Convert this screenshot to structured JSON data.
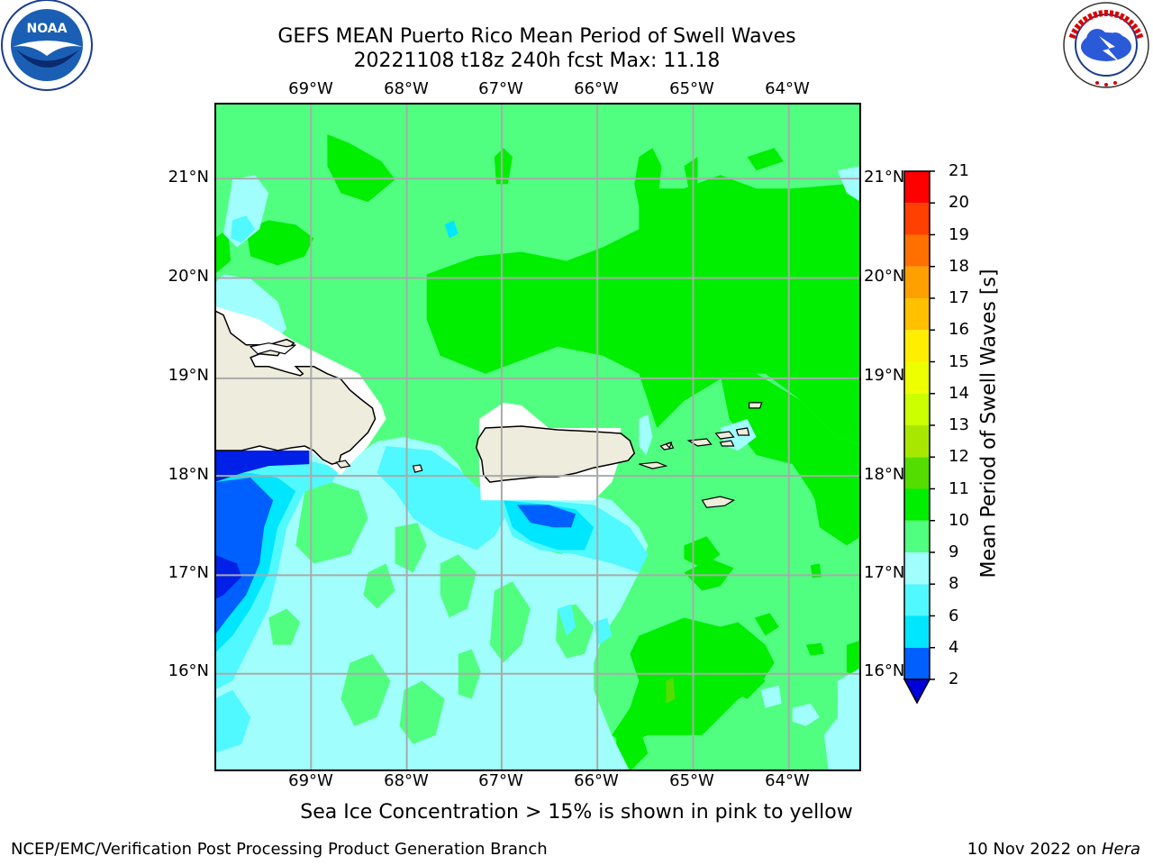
{
  "header": {
    "title_line1": "GEFS MEAN Puerto Rico Mean Period of Swell Waves",
    "title_line2": "20221108 t18z 240h fcst   Max: 11.18"
  },
  "logos": {
    "left": "NOAA",
    "right": "NATIONAL WEATHER SERVICE"
  },
  "map": {
    "region": "Puerto Rico",
    "lon_labels": [
      "69°W",
      "68°W",
      "67°W",
      "66°W",
      "65°W",
      "64°W"
    ],
    "lat_labels": [
      "21°N",
      "20°N",
      "19°N",
      "18°N",
      "17°N",
      "16°N"
    ],
    "grid": true,
    "land_color": "#eeecdc",
    "field": "Mean Period of Swell Waves",
    "max_value": 11.18
  },
  "colorbar": {
    "title": "Mean Period of Swell Waves [s]",
    "levels": [
      "2",
      "4",
      "6",
      "8",
      "9",
      "10",
      "11",
      "12",
      "13",
      "14",
      "15",
      "16",
      "17",
      "18",
      "19",
      "20",
      "21"
    ],
    "colors": [
      "#0020e8",
      "#0060ff",
      "#00e6ff",
      "#50f8ff",
      "#a0fffc",
      "#50ff80",
      "#00ee00",
      "#55dd00",
      "#a8e800",
      "#ccff00",
      "#eeff00",
      "#ffee00",
      "#ffc000",
      "#ffa000",
      "#ff7000",
      "#ff4000",
      "#ff0000"
    ],
    "extend_min_color": "#0000dd"
  },
  "notes": {
    "sea_ice": "Sea Ice Concentration > 15% is shown in pink to yellow"
  },
  "footer": {
    "left": "NCEP/EMC/Verification Post Processing Product Generation Branch",
    "right_date": "10 Nov 2022 on ",
    "right_machine": "Hera"
  }
}
